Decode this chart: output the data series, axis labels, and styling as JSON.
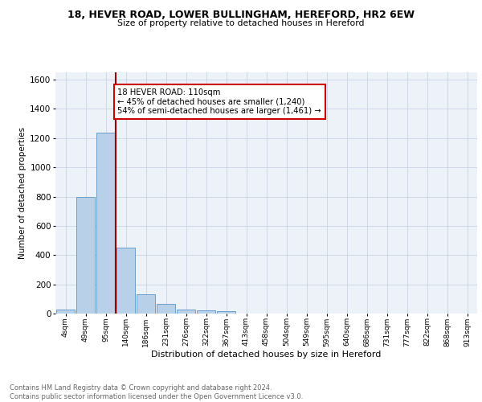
{
  "title": "18, HEVER ROAD, LOWER BULLINGHAM, HEREFORD, HR2 6EW",
  "subtitle": "Size of property relative to detached houses in Hereford",
  "xlabel": "Distribution of detached houses by size in Hereford",
  "ylabel": "Number of detached properties",
  "categories": [
    "4sqm",
    "49sqm",
    "95sqm",
    "140sqm",
    "186sqm",
    "231sqm",
    "276sqm",
    "322sqm",
    "367sqm",
    "413sqm",
    "458sqm",
    "504sqm",
    "549sqm",
    "595sqm",
    "640sqm",
    "686sqm",
    "731sqm",
    "777sqm",
    "822sqm",
    "868sqm",
    "913sqm"
  ],
  "values": [
    25,
    800,
    1240,
    450,
    130,
    65,
    25,
    20,
    15,
    0,
    0,
    0,
    0,
    0,
    0,
    0,
    0,
    0,
    0,
    0,
    0
  ],
  "bar_color": "#b8d0e8",
  "bar_edge_color": "#6aa0cc",
  "vline_x": 2.5,
  "vline_color": "#990000",
  "annotation_text": "18 HEVER ROAD: 110sqm\n← 45% of detached houses are smaller (1,240)\n54% of semi-detached houses are larger (1,461) →",
  "annotation_box_color": "#cc0000",
  "ylim": [
    0,
    1650
  ],
  "yticks": [
    0,
    200,
    400,
    600,
    800,
    1000,
    1200,
    1400,
    1600
  ],
  "footer": "Contains HM Land Registry data © Crown copyright and database right 2024.\nContains public sector information licensed under the Open Government Licence v3.0.",
  "bg_color": "#edf2f9",
  "grid_color": "#c8d4e4"
}
